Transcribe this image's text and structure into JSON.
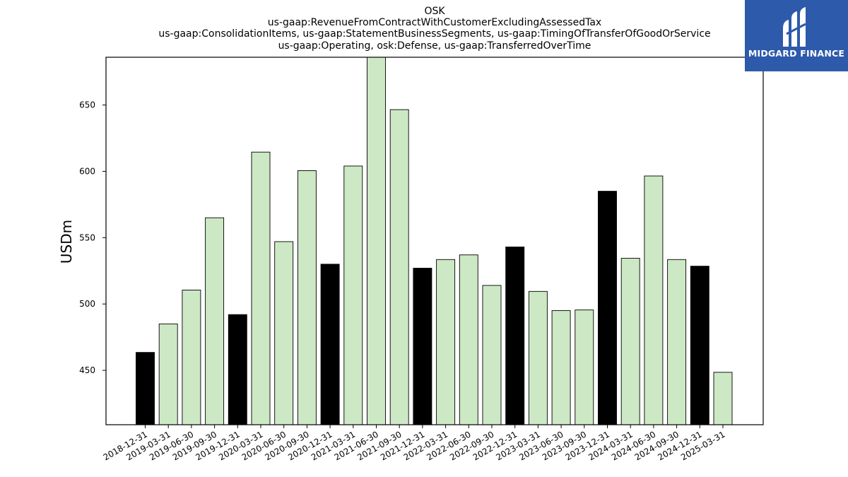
{
  "chart_data": {
    "type": "bar",
    "title_lines": [
      "OSK",
      "us-gaap:RevenueFromContractWithCustomerExcludingAssessedTax",
      "us-gaap:ConsolidationItems, us-gaap:StatementBusinessSegments, us-gaap:TimingOfTransferOfGoodOrService",
      "us-gaap:Operating, osk:Defense, us-gaap:TransferredOverTime"
    ],
    "ylabel": "USDm",
    "xlabel": "",
    "ylim": [
      409,
      686
    ],
    "yticks": [
      450,
      500,
      550,
      600,
      650
    ],
    "categories": [
      "2018-12-31",
      "2019-03-31",
      "2019-06-30",
      "2019-09-30",
      "2019-12-31",
      "2020-03-31",
      "2020-06-30",
      "2020-09-30",
      "2020-12-31",
      "2021-03-31",
      "2021-06-30",
      "2021-09-30",
      "2021-12-31",
      "2022-03-31",
      "2022-06-30",
      "2022-09-30",
      "2022-12-31",
      "2023-03-31",
      "2023-06-30",
      "2023-09-30",
      "2023-12-31",
      "2024-03-31",
      "2024-06-30",
      "2024-09-30",
      "2024-12-31",
      "2025-03-31"
    ],
    "values": [
      463.5,
      485,
      510.5,
      565,
      492,
      614.5,
      547,
      600.5,
      530,
      604,
      688,
      646.5,
      527,
      533.5,
      537,
      514,
      543,
      509.5,
      495,
      495.5,
      585,
      534.5,
      596.5,
      533.5,
      528.5,
      448.5
    ],
    "highlight": [
      true,
      false,
      false,
      false,
      true,
      false,
      false,
      false,
      true,
      false,
      false,
      false,
      true,
      false,
      false,
      false,
      true,
      false,
      false,
      false,
      true,
      false,
      false,
      false,
      true,
      false
    ],
    "colors": {
      "normal": "#cce8c4",
      "highlight": "#000000",
      "edge": "#000000"
    },
    "grid": false,
    "legend": "none"
  },
  "logo": {
    "text": "MIDGARD FINANCE",
    "background": "#2d5aab"
  }
}
